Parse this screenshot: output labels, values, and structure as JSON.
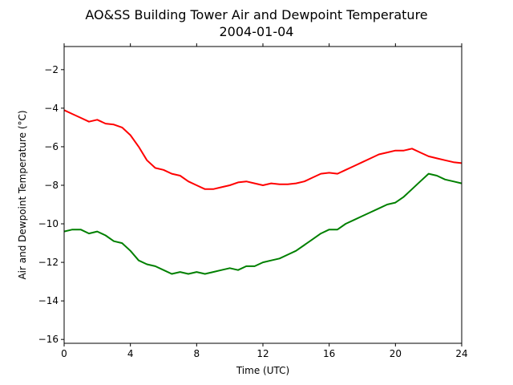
{
  "chart_data": {
    "type": "line",
    "title": "AO&SS Building Tower Air and Dewpoint Temperature",
    "subtitle": "2004-01-04",
    "xlabel": "Time (UTC)",
    "ylabel": "Air and Dewpoint Temperature (°C)",
    "xlim": [
      0,
      24
    ],
    "ylim": [
      -16.2,
      -0.8
    ],
    "xticks": [
      0,
      4,
      8,
      12,
      16,
      20,
      24
    ],
    "yticks": [
      -16,
      -14,
      -12,
      -10,
      -8,
      -6,
      -4,
      -2
    ],
    "grid": false,
    "legend": "none",
    "series": [
      {
        "color": "#ff0000",
        "x": [
          0,
          0.5,
          1,
          1.5,
          2,
          2.5,
          3,
          3.5,
          4,
          4.5,
          5,
          5.5,
          6,
          6.5,
          7,
          7.5,
          8,
          8.5,
          9,
          9.5,
          10,
          10.5,
          11,
          11.5,
          12,
          12.5,
          13,
          13.5,
          14,
          14.5,
          15,
          15.5,
          16,
          16.5,
          17,
          17.5,
          18,
          18.5,
          19,
          19.5,
          20,
          20.5,
          21,
          21.5,
          22,
          22.5,
          23,
          23.5,
          24
        ],
        "y": [
          -4.1,
          -4.3,
          -4.5,
          -4.7,
          -4.6,
          -4.8,
          -4.85,
          -5.0,
          -5.4,
          -6.0,
          -6.7,
          -7.1,
          -7.2,
          -7.4,
          -7.5,
          -7.8,
          -8.0,
          -8.2,
          -8.2,
          -8.1,
          -8.0,
          -7.85,
          -7.8,
          -7.9,
          -8.0,
          -7.9,
          -7.95,
          -7.95,
          -7.9,
          -7.8,
          -7.6,
          -7.4,
          -7.35,
          -7.4,
          -7.2,
          -7.0,
          -6.8,
          -6.6,
          -6.4,
          -6.3,
          -6.2,
          -6.2,
          -6.1,
          -6.3,
          -6.5,
          -6.6,
          -6.7,
          -6.8,
          -6.85
        ]
      },
      {
        "color": "#008000",
        "x": [
          0,
          0.5,
          1,
          1.5,
          2,
          2.5,
          3,
          3.5,
          4,
          4.5,
          5,
          5.5,
          6,
          6.5,
          7,
          7.5,
          8,
          8.5,
          9,
          9.5,
          10,
          10.5,
          11,
          11.5,
          12,
          12.5,
          13,
          13.5,
          14,
          14.5,
          15,
          15.5,
          16,
          16.5,
          17,
          17.5,
          18,
          18.5,
          19,
          19.5,
          20,
          20.5,
          21,
          21.5,
          22,
          22.5,
          23,
          23.5,
          24
        ],
        "y": [
          -10.4,
          -10.3,
          -10.3,
          -10.5,
          -10.4,
          -10.6,
          -10.9,
          -11.0,
          -11.4,
          -11.9,
          -12.1,
          -12.2,
          -12.4,
          -12.6,
          -12.5,
          -12.6,
          -12.5,
          -12.6,
          -12.5,
          -12.4,
          -12.3,
          -12.4,
          -12.2,
          -12.2,
          -12.0,
          -11.9,
          -11.8,
          -11.6,
          -11.4,
          -11.1,
          -10.8,
          -10.5,
          -10.3,
          -10.3,
          -10.0,
          -9.8,
          -9.6,
          -9.4,
          -9.2,
          -9.0,
          -8.9,
          -8.6,
          -8.2,
          -7.8,
          -7.4,
          -7.5,
          -7.7,
          -7.8,
          -7.9
        ]
      }
    ]
  }
}
